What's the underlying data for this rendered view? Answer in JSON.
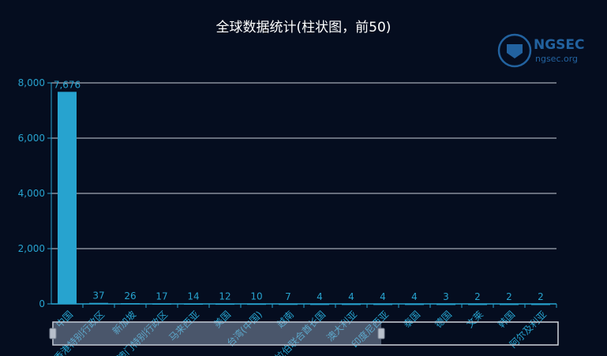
{
  "chart_data": {
    "type": "bar",
    "title": "全球数据统计(柱状图，前50)",
    "categories": [
      "中国",
      "香港特别行政区",
      "新加坡",
      "澳门特别行政区",
      "马来西亚",
      "美国",
      "台湾(中国)",
      "越南",
      "阿拉伯联合酋长国",
      "澳大利亚",
      "印度尼西亚",
      "泰国",
      "德国",
      "文莱",
      "韩国",
      "阿尔及利亚"
    ],
    "values": [
      7676,
      37,
      26,
      17,
      14,
      12,
      10,
      7,
      4,
      4,
      4,
      4,
      3,
      2,
      2,
      2
    ],
    "ylim": [
      0,
      8000
    ],
    "yticks": [
      0,
      2000,
      4000,
      6000,
      8000
    ],
    "grid": true,
    "legend": "none",
    "data_zoom": {
      "start_percent": 0,
      "end_percent": 65
    },
    "colors": {
      "bar": "#27a3cf",
      "axis": "#27a3cf",
      "grid": "#c9ced8",
      "background": "#050d1f",
      "title": "#ffffff"
    }
  },
  "watermark": {
    "brand": "NGSEC",
    "site": "ngsec.org"
  }
}
